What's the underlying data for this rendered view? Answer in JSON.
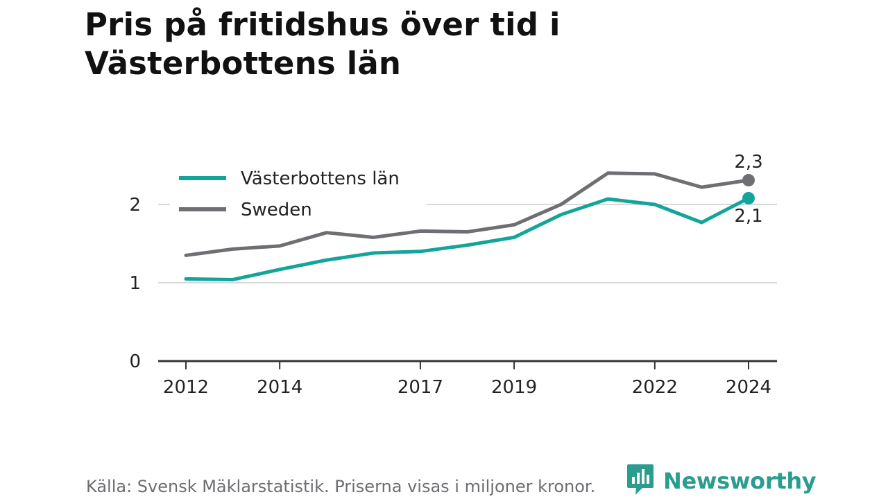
{
  "chart_data": {
    "type": "line",
    "title": "Pris på fritidshus över tid i Västerbottens län",
    "xlabel": "",
    "ylabel": "",
    "x": [
      2012,
      2013,
      2014,
      2015,
      2016,
      2017,
      2018,
      2019,
      2020,
      2021,
      2022,
      2023,
      2024
    ],
    "x_tick_labels": [
      "2012",
      "2014",
      "2017",
      "2019",
      "2022",
      "2024"
    ],
    "y_tick_labels": [
      "0",
      "1",
      "2"
    ],
    "ylim": [
      0,
      2.45
    ],
    "grid": true,
    "legend_position": "top-left",
    "series": [
      {
        "name": "Västerbottens län",
        "color": "#14a59a",
        "values": [
          1.05,
          1.04,
          1.17,
          1.29,
          1.38,
          1.4,
          1.48,
          1.58,
          1.87,
          2.07,
          2.0,
          1.77,
          2.08
        ],
        "end_label": "2,1"
      },
      {
        "name": "Sweden",
        "color": "#6e6e73",
        "values": [
          1.35,
          1.43,
          1.47,
          1.64,
          1.58,
          1.66,
          1.65,
          1.74,
          2.0,
          2.4,
          2.39,
          2.22,
          2.31
        ],
        "end_label": "2,3"
      }
    ]
  },
  "footer": {
    "source": "Källa: Svensk Mäklarstatistik. Priserna visas i miljoner kronor.",
    "brand": "Newsworthy",
    "brand_color": "#2a9d8f",
    "brand_icon": "newsworthy-logo-icon"
  }
}
